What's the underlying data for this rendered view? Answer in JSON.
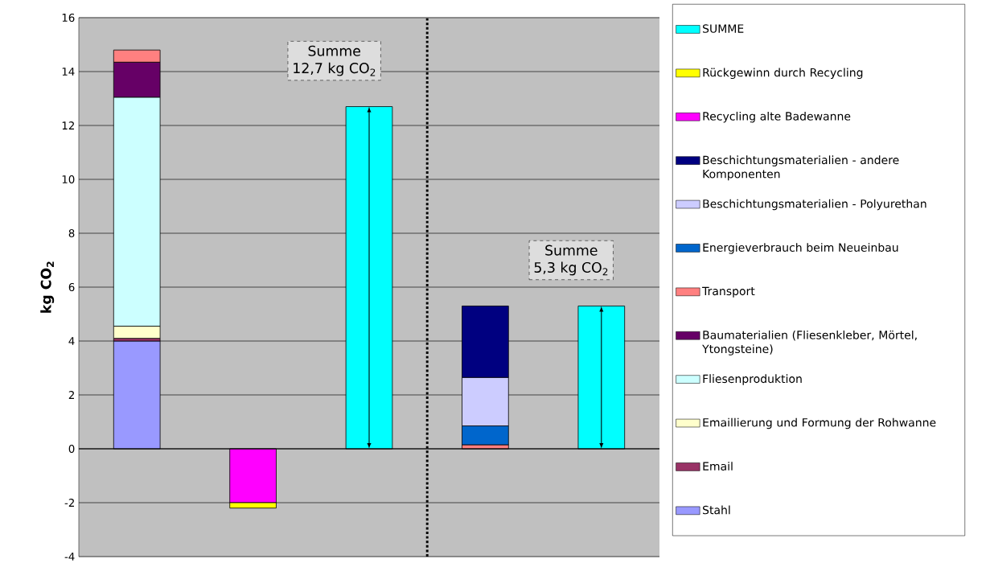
{
  "chart_data": {
    "type": "bar",
    "stacked": true,
    "ylabel": "kg CO$_{2}$",
    "categories": [
      null,
      null,
      null,
      null,
      null
    ],
    "series": [
      {
        "name": "Stahl",
        "color": "#9999ff",
        "values": [
          4.0,
          null,
          null,
          null,
          null
        ]
      },
      {
        "name": "Email",
        "color": "#993366",
        "values": [
          0.1,
          null,
          null,
          null,
          null
        ]
      },
      {
        "name": "Emaillierung und Formung der Rohwanne",
        "color": "#ffffcc",
        "values": [
          0.45,
          null,
          null,
          null,
          null
        ]
      },
      {
        "name": "Fliesenproduktion",
        "color": "#ccffff",
        "values": [
          8.5,
          null,
          null,
          null,
          null
        ]
      },
      {
        "name": "Baumaterialien (Fliesenkleber, Mörtel, Ytongsteine)",
        "color": "#660066",
        "values": [
          1.3,
          null,
          null,
          null,
          null
        ]
      },
      {
        "name": "Transport",
        "color": "#ff8080",
        "values": [
          0.45,
          null,
          null,
          0.15,
          null
        ]
      },
      {
        "name": "Energieverbrauch beim Neueinbau",
        "color": "#0066cc",
        "values": [
          null,
          null,
          null,
          0.7,
          null
        ]
      },
      {
        "name": "Beschichtungsmaterialien - Polyurethan",
        "color": "#ccccff",
        "values": [
          null,
          null,
          null,
          1.8,
          null
        ]
      },
      {
        "name": "Beschichtungsmaterialien - andere Komponenten",
        "color": "#000080",
        "values": [
          null,
          null,
          null,
          2.65,
          null
        ]
      },
      {
        "name": "Recycling alte Badewanne",
        "color": "#ff00ff",
        "values": [
          null,
          -2.0,
          null,
          null,
          null
        ]
      },
      {
        "name": "Rückgewinn durch Recycling",
        "color": "#ffff00",
        "values": [
          null,
          -0.2,
          null,
          null,
          null
        ]
      },
      {
        "name": "SUMME",
        "color": "#00ffff",
        "values": [
          null,
          null,
          12.7,
          null,
          5.3
        ]
      }
    ],
    "ylim": [
      -4,
      16
    ],
    "yticks": [
      -4,
      -2,
      0,
      2,
      4,
      6,
      8,
      10,
      12,
      14,
      16
    ],
    "grid": "y",
    "legend": "right",
    "annotations": [
      "Summe",
      "12,7 kg CO$_{2}$",
      "Summe",
      "5,3 kg CO$_{2}$"
    ]
  }
}
